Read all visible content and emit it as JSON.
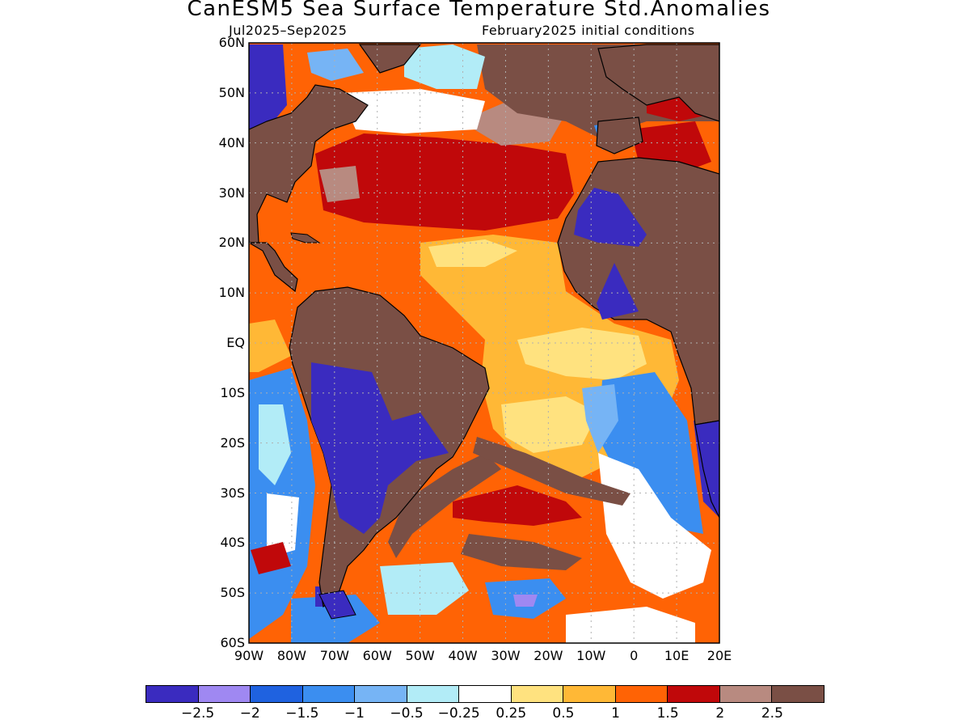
{
  "title": "CanESM5 Sea Surface Temperature Std.Anomalies",
  "subtitle_left": "Jul2025–Sep2025",
  "subtitle_right": "February2025 initial conditions",
  "map": {
    "lon_range": [
      -90,
      20
    ],
    "lat_range": [
      -60,
      60
    ],
    "gridlines": "dotted",
    "land_color": "#7a4f45",
    "lat_labels": [
      "60N",
      "50N",
      "40N",
      "30N",
      "20N",
      "10N",
      "EQ",
      "10S",
      "20S",
      "30S",
      "40S",
      "50S",
      "60S"
    ],
    "lon_labels": [
      "90W",
      "80W",
      "70W",
      "60W",
      "50W",
      "40W",
      "30W",
      "20W",
      "10W",
      "0",
      "10E",
      "20E"
    ]
  },
  "colorbar": {
    "colors": [
      "#3a2bbf",
      "#9f88f2",
      "#1f62e0",
      "#3b8ef0",
      "#76b4f5",
      "#b2ecf7",
      "#ffffff",
      "#ffe27f",
      "#ffb836",
      "#ff6305",
      "#c0080a",
      "#b88a80",
      "#7a4f45"
    ],
    "labels": [
      "−2.5",
      "−2",
      "−1.5",
      "−1",
      "−0.5",
      "−0.25",
      "0.25",
      "0.5",
      "1",
      "1.5",
      "2",
      "2.5"
    ]
  }
}
